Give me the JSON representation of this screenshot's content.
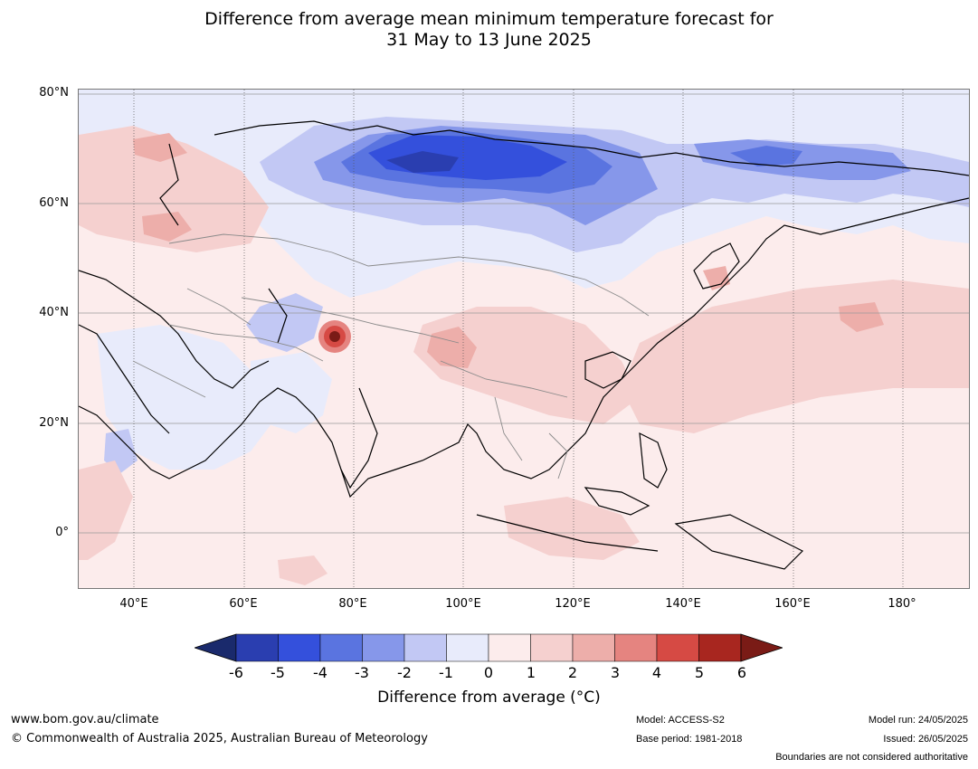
{
  "title": {
    "line1": "Difference from average mean minimum temperature forecast for",
    "line2": "31 May to 13 June 2025"
  },
  "map": {
    "lat_labels": [
      "80°N",
      "60°N",
      "40°N",
      "20°N",
      "0°"
    ],
    "lon_labels": [
      "40°E",
      "60°E",
      "80°E",
      "100°E",
      "120°E",
      "140°E",
      "160°E",
      "180°"
    ],
    "colors": {
      "land_line": "#000000",
      "border_line": "#8a8a8a",
      "grid_line": "#9a9a9a"
    }
  },
  "colorbar": {
    "ticks": [
      "-6",
      "-5",
      "-4",
      "-3",
      "-2",
      "-1",
      "0",
      "1",
      "2",
      "3",
      "4",
      "5",
      "6"
    ],
    "colors": [
      "#1a2a6c",
      "#2a3eb0",
      "#3450dc",
      "#5a74e0",
      "#8697ea",
      "#c2c8f4",
      "#e8ebfb",
      "#fcecec",
      "#f5d0cf",
      "#edaeaa",
      "#e58480",
      "#d64a44",
      "#a8261f",
      "#7a1b16"
    ],
    "label": "Difference from average (°C)"
  },
  "footer": {
    "website": "www.bom.gov.au/climate",
    "copyright": "© Commonwealth of Australia 2025, Australian Bureau of Meteorology",
    "model": "Model: ACCESS-S2",
    "base_period": "Base period: 1981-2018",
    "model_run": "Model run: 24/05/2025",
    "issued": "Issued: 26/05/2025",
    "disclaimer": "Boundaries are not considered authoritative"
  }
}
